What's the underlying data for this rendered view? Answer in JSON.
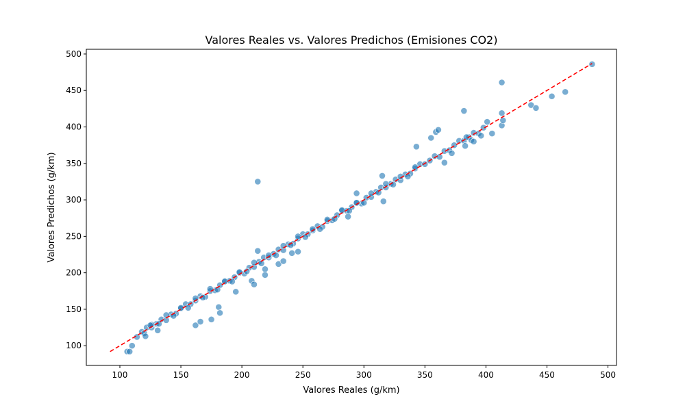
{
  "chart_data": {
    "type": "scatter",
    "title": "Valores Reales vs. Valores Predichos (Emisiones CO2)",
    "xlabel": "Valores Reales (g/km)",
    "ylabel": "Valores Predichos (g/km)",
    "xlim": [
      72.5,
      507
    ],
    "ylim": [
      73,
      506.5
    ],
    "xticks": [
      100,
      150,
      200,
      250,
      300,
      350,
      400,
      450,
      500
    ],
    "yticks": [
      100,
      150,
      200,
      250,
      300,
      350,
      400,
      450,
      500
    ],
    "grid": false,
    "point_color": "#1f77b4",
    "point_alpha": 0.6,
    "reference_line": {
      "x": [
        92,
        487
      ],
      "y": [
        92,
        487
      ],
      "color": "#ff0000",
      "style": "dashed"
    },
    "points": [
      [
        114,
        112
      ],
      [
        118,
        119
      ],
      [
        122,
        125
      ],
      [
        126,
        125
      ],
      [
        130,
        130
      ],
      [
        134,
        136
      ],
      [
        138,
        135
      ],
      [
        142,
        143
      ],
      [
        146,
        144
      ],
      [
        150,
        151
      ],
      [
        154,
        157
      ],
      [
        158,
        157
      ],
      [
        162,
        162
      ],
      [
        166,
        168
      ],
      [
        170,
        167
      ],
      [
        174,
        175
      ],
      [
        178,
        176
      ],
      [
        182,
        183
      ],
      [
        186,
        189
      ],
      [
        190,
        189
      ],
      [
        194,
        194
      ],
      [
        198,
        200
      ],
      [
        202,
        199
      ],
      [
        206,
        207
      ],
      [
        210,
        208
      ],
      [
        214,
        215
      ],
      [
        218,
        221
      ],
      [
        222,
        221
      ],
      [
        226,
        226
      ],
      [
        230,
        232
      ],
      [
        234,
        231
      ],
      [
        238,
        239
      ],
      [
        242,
        240
      ],
      [
        246,
        247
      ],
      [
        250,
        253
      ],
      [
        254,
        253
      ],
      [
        258,
        258
      ],
      [
        262,
        264
      ],
      [
        266,
        263
      ],
      [
        270,
        271
      ],
      [
        274,
        272
      ],
      [
        278,
        279
      ],
      [
        282,
        285
      ],
      [
        286,
        285
      ],
      [
        290,
        290
      ],
      [
        294,
        296
      ],
      [
        298,
        295
      ],
      [
        302,
        303
      ],
      [
        306,
        304
      ],
      [
        310,
        311
      ],
      [
        314,
        317
      ],
      [
        318,
        317
      ],
      [
        322,
        322
      ],
      [
        326,
        328
      ],
      [
        330,
        327
      ],
      [
        334,
        335
      ],
      [
        338,
        336
      ],
      [
        342,
        343
      ],
      [
        346,
        349
      ],
      [
        350,
        349
      ],
      [
        354,
        354
      ],
      [
        358,
        360
      ],
      [
        362,
        359
      ],
      [
        366,
        367
      ],
      [
        370,
        368
      ],
      [
        374,
        375
      ],
      [
        378,
        381
      ],
      [
        382,
        381
      ],
      [
        386,
        386
      ],
      [
        390,
        392
      ],
      [
        394,
        391
      ],
      [
        398,
        399
      ],
      [
        120,
        117
      ],
      [
        126,
        129
      ],
      [
        132,
        130
      ],
      [
        138,
        142
      ],
      [
        144,
        141
      ],
      [
        150,
        152
      ],
      [
        156,
        152
      ],
      [
        162,
        165
      ],
      [
        168,
        166
      ],
      [
        174,
        178
      ],
      [
        180,
        177
      ],
      [
        186,
        188
      ],
      [
        192,
        188
      ],
      [
        198,
        201
      ],
      [
        204,
        202
      ],
      [
        210,
        214
      ],
      [
        216,
        213
      ],
      [
        222,
        224
      ],
      [
        228,
        224
      ],
      [
        234,
        237
      ],
      [
        240,
        238
      ],
      [
        246,
        250
      ],
      [
        252,
        249
      ],
      [
        258,
        260
      ],
      [
        264,
        260
      ],
      [
        270,
        273
      ],
      [
        276,
        274
      ],
      [
        282,
        286
      ],
      [
        288,
        285
      ],
      [
        294,
        296
      ],
      [
        300,
        296
      ],
      [
        306,
        309
      ],
      [
        312,
        310
      ],
      [
        318,
        322
      ],
      [
        324,
        321
      ],
      [
        330,
        332
      ],
      [
        336,
        332
      ],
      [
        342,
        345
      ],
      [
        213,
        325
      ],
      [
        162,
        128
      ],
      [
        166,
        133
      ],
      [
        175,
        136
      ],
      [
        181,
        153
      ],
      [
        182,
        145
      ],
      [
        195,
        174
      ],
      [
        208,
        189
      ],
      [
        210,
        184
      ],
      [
        213,
        230
      ],
      [
        219,
        205
      ],
      [
        219,
        197
      ],
      [
        230,
        212
      ],
      [
        234,
        216
      ],
      [
        241,
        227
      ],
      [
        246,
        229
      ],
      [
        316,
        298
      ],
      [
        343,
        373
      ],
      [
        355,
        385
      ],
      [
        359,
        393
      ],
      [
        361,
        396
      ],
      [
        366,
        351
      ],
      [
        382,
        422
      ],
      [
        401,
        407
      ],
      [
        405,
        391
      ],
      [
        413,
        461
      ],
      [
        413,
        419
      ],
      [
        413,
        402
      ],
      [
        414,
        409
      ],
      [
        437,
        430
      ],
      [
        441,
        426
      ],
      [
        454,
        442
      ],
      [
        465,
        448
      ],
      [
        487,
        486
      ],
      [
        106,
        92
      ],
      [
        108,
        92
      ],
      [
        110,
        100
      ],
      [
        125,
        128
      ],
      [
        315,
        333
      ],
      [
        294,
        309
      ],
      [
        287,
        277
      ],
      [
        372,
        364
      ],
      [
        383,
        374
      ],
      [
        388,
        382
      ],
      [
        390,
        380
      ],
      [
        396,
        388
      ],
      [
        384,
        386
      ],
      [
        121,
        113
      ],
      [
        131,
        121
      ]
    ]
  }
}
